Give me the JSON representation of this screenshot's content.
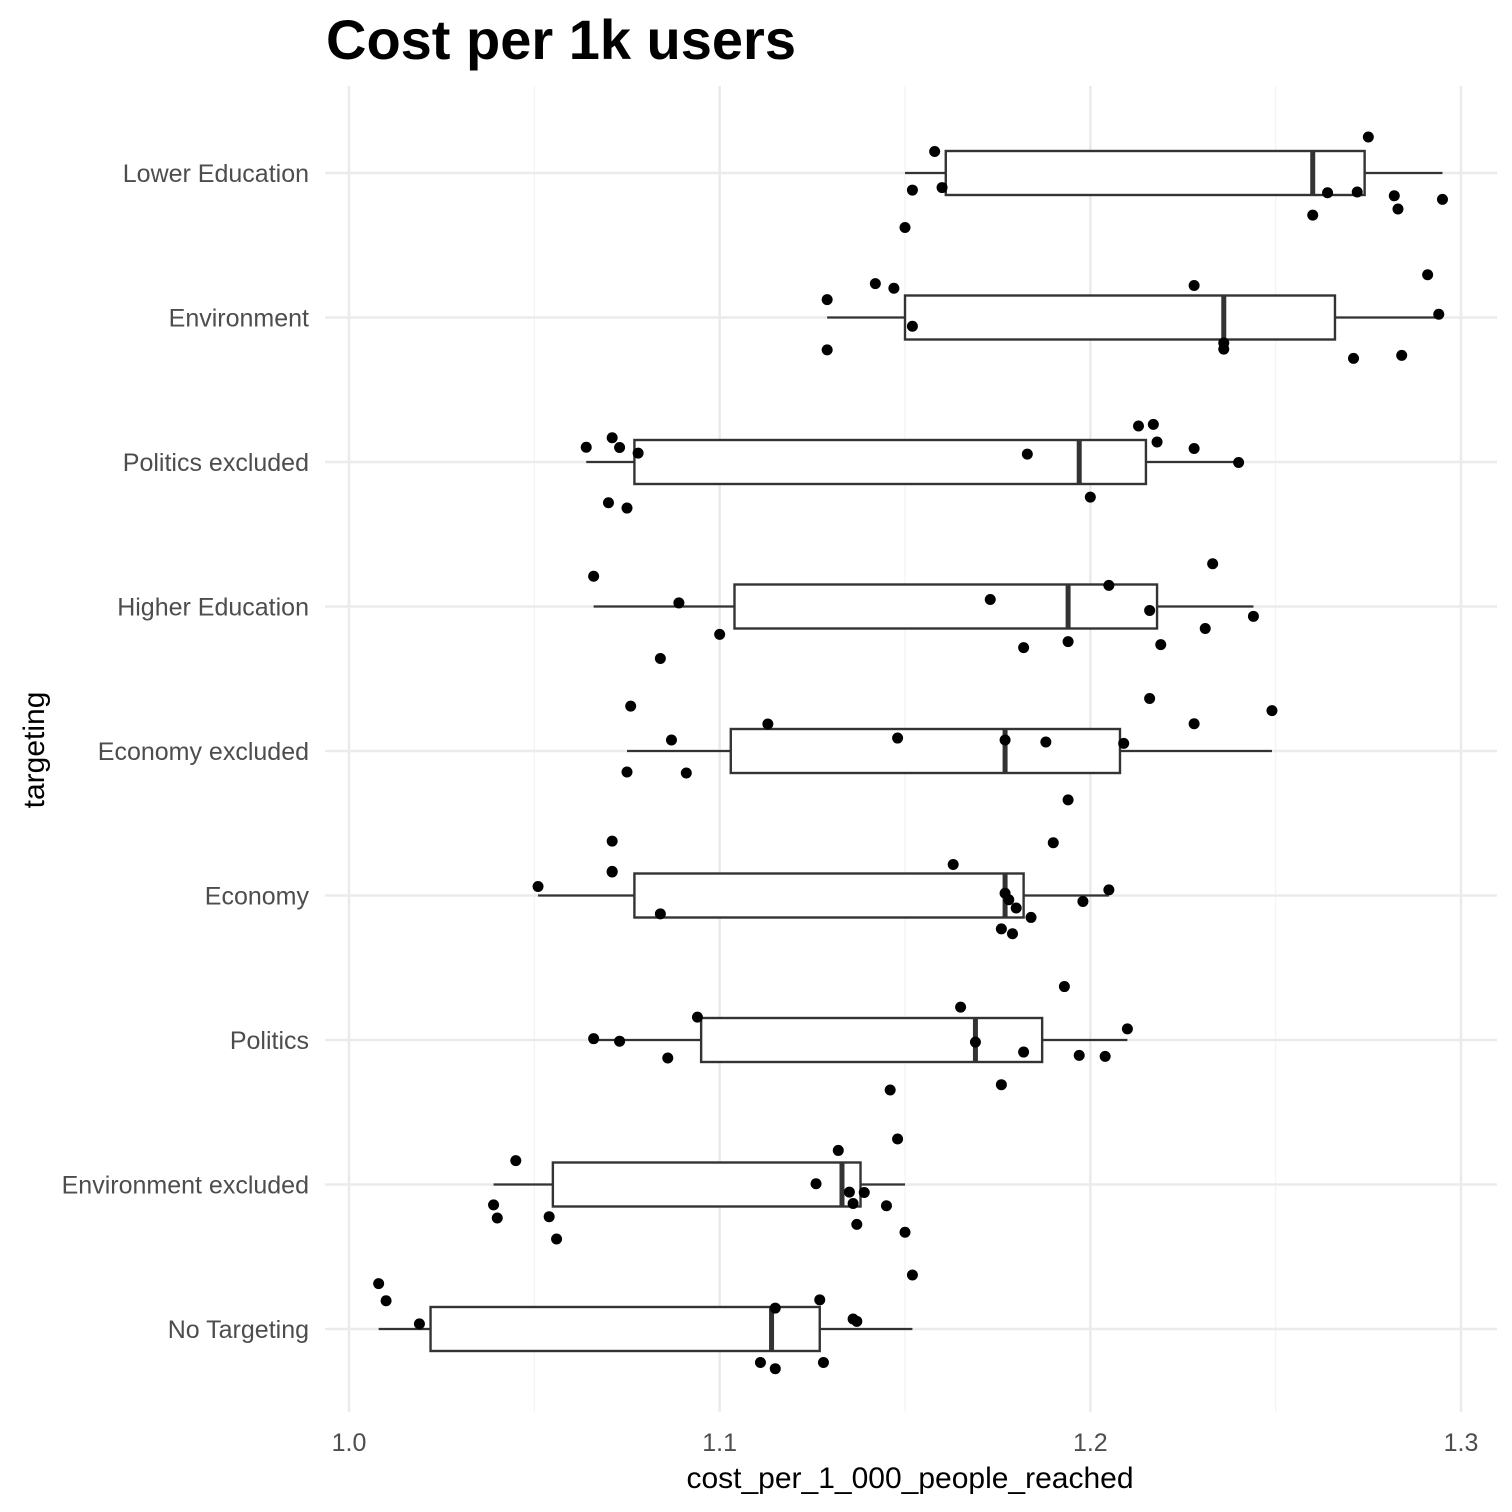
{
  "chart_data": {
    "type": "boxplot",
    "title": "Cost per 1k users",
    "xlabel": "cost_per_1_000_people_reached",
    "ylabel": "targeting",
    "xlim": [
      1.0,
      1.3
    ],
    "x_ticks": [
      "1.0",
      "1.1",
      "1.2",
      "1.3"
    ],
    "x_tick_values": [
      1.0,
      1.1,
      1.2,
      1.3
    ],
    "grid": true,
    "colors": {
      "box_line": "#333333",
      "point": "#000000",
      "grid_major": "#ebebeb",
      "grid_minor": "#f4f4f4"
    },
    "categories": [
      "Lower Education",
      "Environment",
      "Politics excluded",
      "Higher Education",
      "Economy excluded",
      "Economy",
      "Politics",
      "Environment excluded",
      "No Targeting"
    ],
    "boxes": [
      {
        "category": "Lower Education",
        "whisker_low": 1.15,
        "q1": 1.161,
        "median": 1.26,
        "q3": 1.274,
        "whisker_high": 1.295
      },
      {
        "category": "Environment",
        "whisker_low": 1.129,
        "q1": 1.15,
        "median": 1.236,
        "q3": 1.266,
        "whisker_high": 1.294
      },
      {
        "category": "Politics excluded",
        "whisker_low": 1.064,
        "q1": 1.077,
        "median": 1.197,
        "q3": 1.215,
        "whisker_high": 1.24
      },
      {
        "category": "Higher Education",
        "whisker_low": 1.066,
        "q1": 1.104,
        "median": 1.194,
        "q3": 1.218,
        "whisker_high": 1.244
      },
      {
        "category": "Economy excluded",
        "whisker_low": 1.075,
        "q1": 1.103,
        "median": 1.177,
        "q3": 1.208,
        "whisker_high": 1.249
      },
      {
        "category": "Economy",
        "whisker_low": 1.051,
        "q1": 1.077,
        "median": 1.177,
        "q3": 1.182,
        "whisker_high": 1.205
      },
      {
        "category": "Politics",
        "whisker_low": 1.066,
        "q1": 1.095,
        "median": 1.169,
        "q3": 1.187,
        "whisker_high": 1.21
      },
      {
        "category": "Environment excluded",
        "whisker_low": 1.039,
        "q1": 1.055,
        "median": 1.133,
        "q3": 1.138,
        "whisker_high": 1.15
      },
      {
        "category": "No Targeting",
        "whisker_low": 1.008,
        "q1": 1.022,
        "median": 1.114,
        "q3": 1.127,
        "whisker_high": 1.152
      }
    ],
    "points": [
      {
        "category": "Lower Education",
        "values": [
          1.152,
          1.158,
          1.16,
          1.15,
          1.264,
          1.272,
          1.275,
          1.26,
          1.282,
          1.283,
          1.295
        ]
      },
      {
        "category": "Environment",
        "values": [
          1.129,
          1.129,
          1.142,
          1.152,
          1.147,
          1.228,
          1.236,
          1.271,
          1.284,
          1.291,
          1.294,
          1.236
        ]
      },
      {
        "category": "Politics excluded",
        "values": [
          1.064,
          1.071,
          1.073,
          1.075,
          1.07,
          1.078,
          1.183,
          1.2,
          1.213,
          1.217,
          1.218,
          1.228,
          1.24
        ]
      },
      {
        "category": "Higher Education",
        "values": [
          1.084,
          1.089,
          1.1,
          1.066,
          1.173,
          1.182,
          1.194,
          1.205,
          1.216,
          1.219,
          1.231,
          1.233,
          1.244
        ]
      },
      {
        "category": "Economy excluded",
        "values": [
          1.076,
          1.075,
          1.087,
          1.091,
          1.113,
          1.148,
          1.177,
          1.188,
          1.194,
          1.209,
          1.216,
          1.228,
          1.249
        ]
      },
      {
        "category": "Economy",
        "values": [
          1.084,
          1.071,
          1.071,
          1.071,
          1.051,
          1.163,
          1.176,
          1.177,
          1.178,
          1.179,
          1.18,
          1.184,
          1.19,
          1.198,
          1.205
        ]
      },
      {
        "category": "Politics",
        "values": [
          1.073,
          1.086,
          1.094,
          1.066,
          1.146,
          1.165,
          1.169,
          1.176,
          1.182,
          1.193,
          1.197,
          1.204,
          1.21
        ]
      },
      {
        "category": "Environment excluded",
        "values": [
          1.04,
          1.039,
          1.045,
          1.054,
          1.056,
          1.126,
          1.132,
          1.135,
          1.136,
          1.137,
          1.139,
          1.145,
          1.148,
          1.15
        ]
      },
      {
        "category": "No Targeting",
        "values": [
          1.008,
          1.01,
          1.019,
          1.111,
          1.115,
          1.115,
          1.127,
          1.128,
          1.136,
          1.137,
          1.152
        ]
      }
    ]
  }
}
